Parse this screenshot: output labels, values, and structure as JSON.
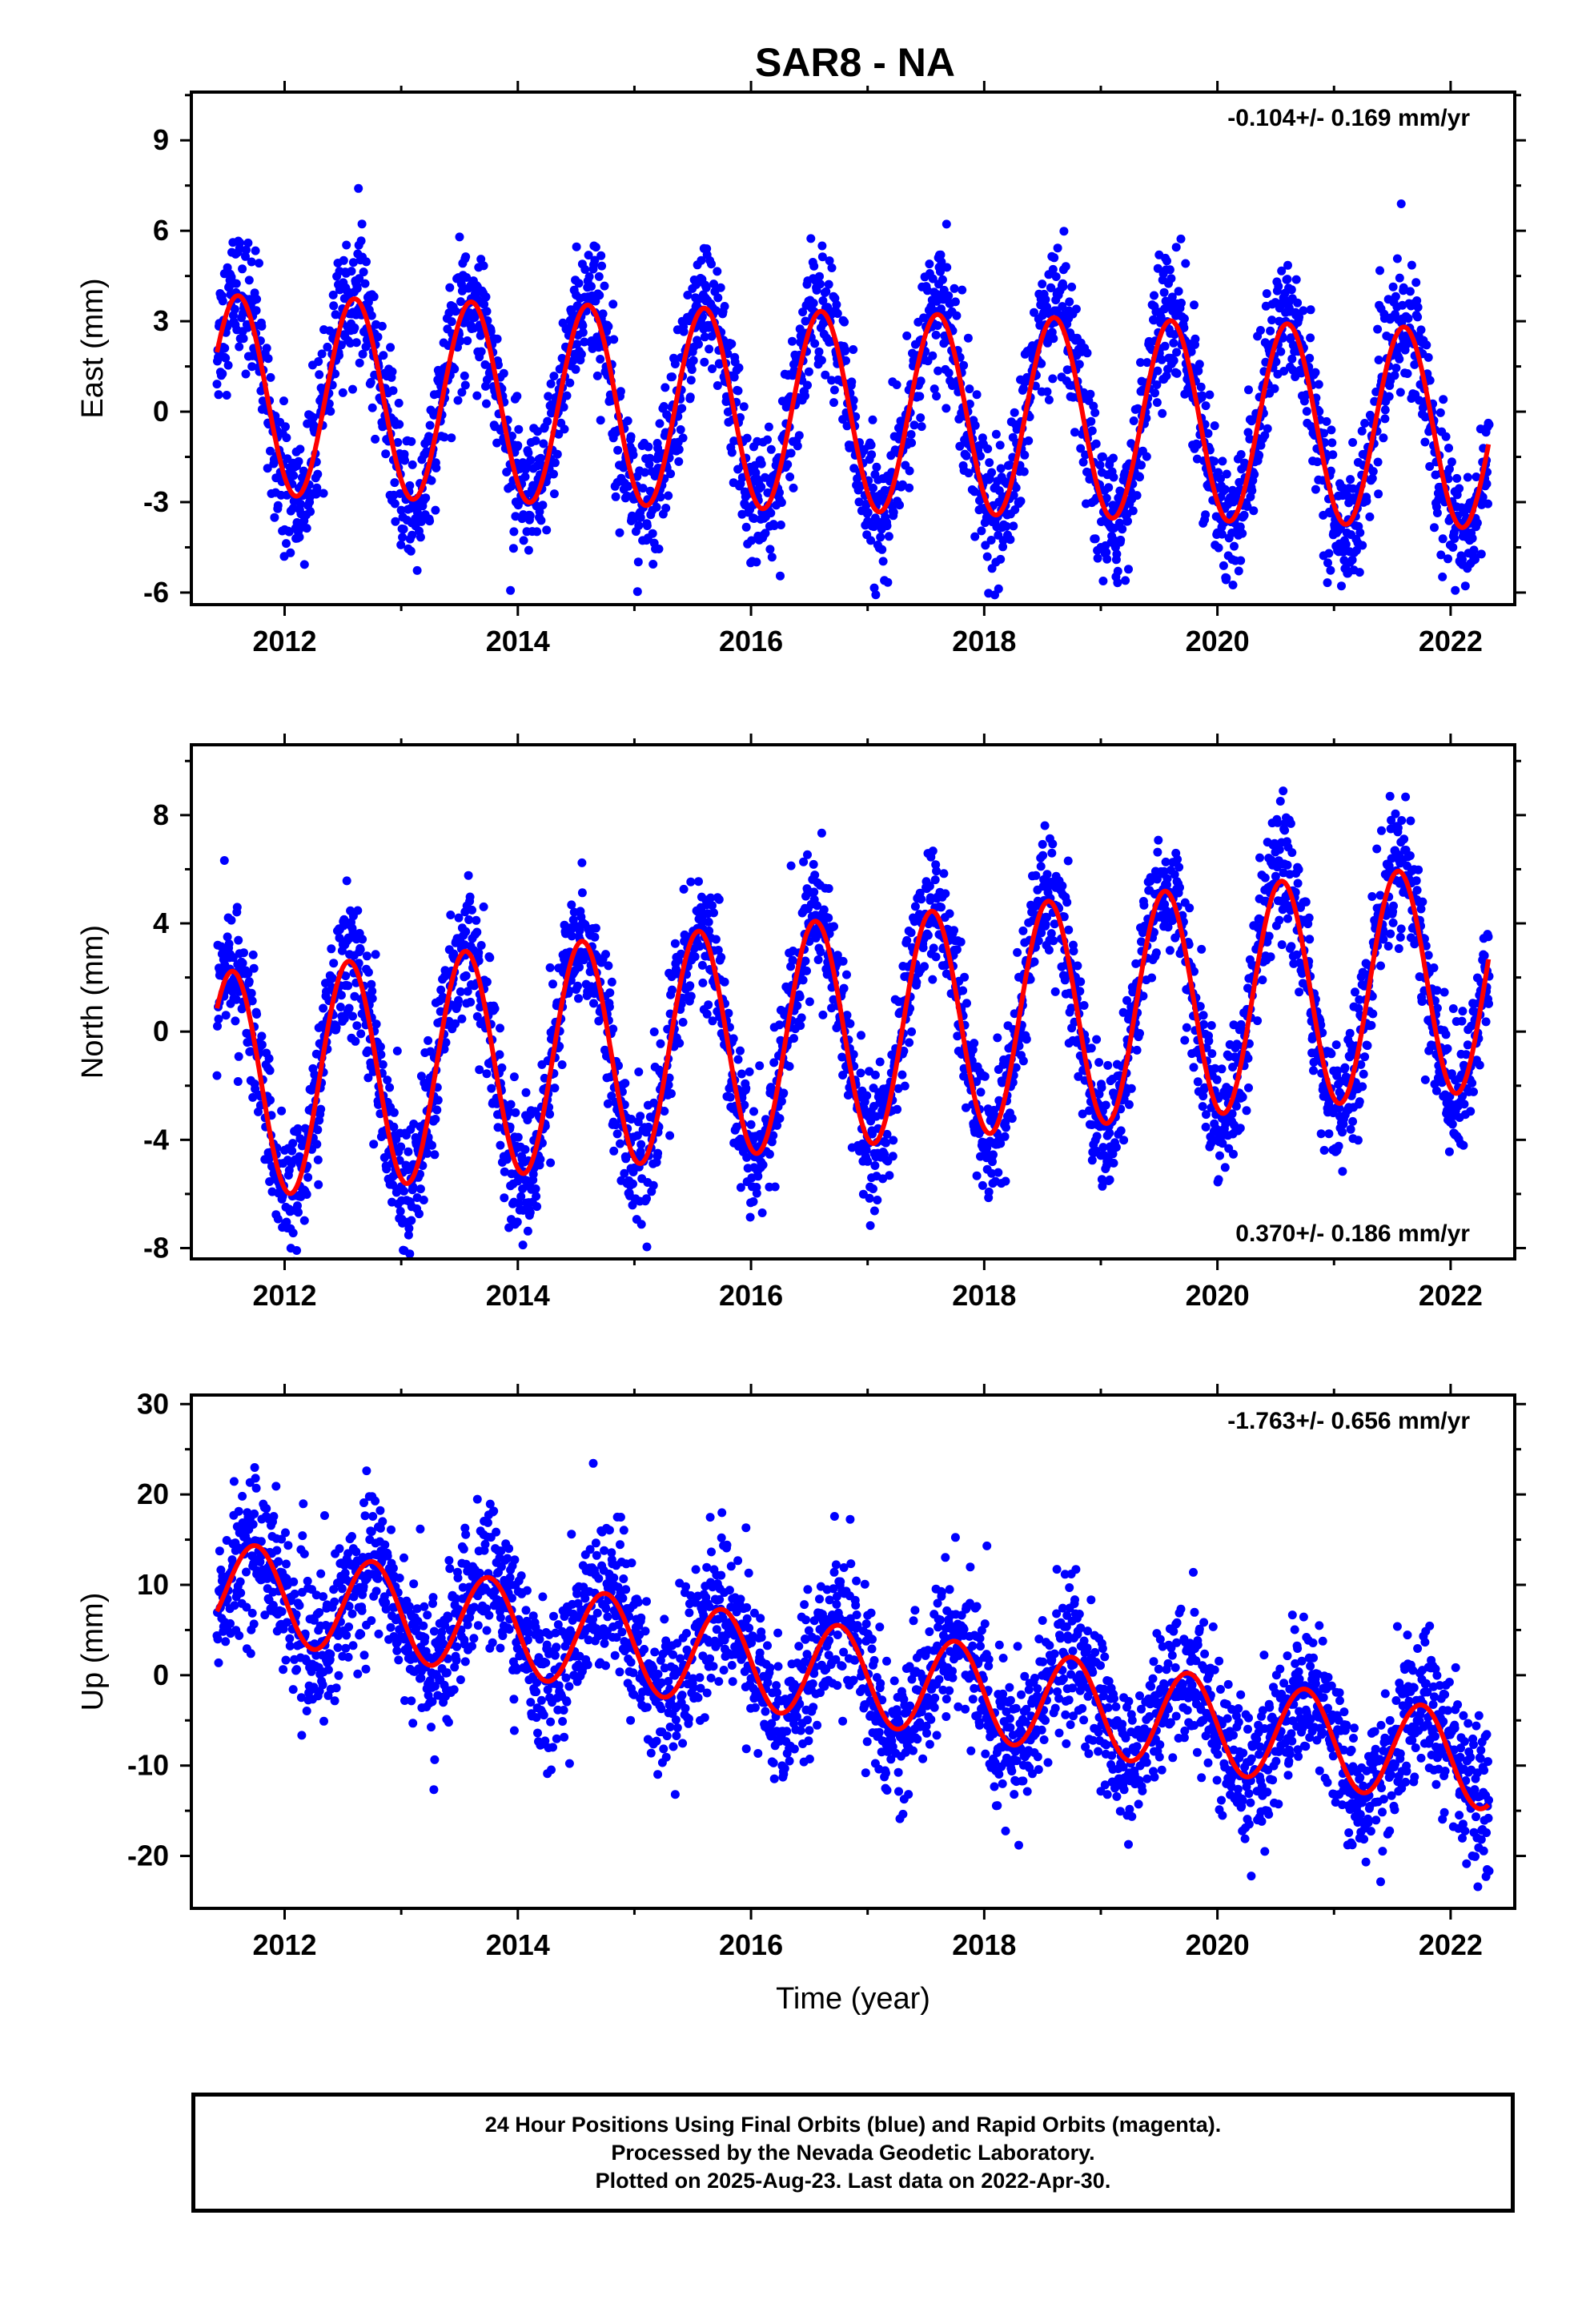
{
  "colors": {
    "points": "#0000ff",
    "model": "#ff0000",
    "axis": "#000000"
  },
  "chart_data": [
    {
      "type": "scatter",
      "title": "SAR8 - NA",
      "ylabel": "East (mm)",
      "xlabel": "",
      "rate_label": "-0.104+/- 0.169 mm/yr",
      "rate_label_position": "top-right",
      "xlim": [
        2011.2,
        2022.55
      ],
      "ylim": [
        -6.4,
        10.6
      ],
      "x_ticks": [
        2012,
        2014,
        2016,
        2018,
        2020,
        2022
      ],
      "y_ticks": [
        -6,
        -3,
        0,
        3,
        6,
        9
      ],
      "series": [
        {
          "role": "data",
          "marker": "dot",
          "color": "#0000ff",
          "x_range": [
            2011.42,
            2022.33
          ],
          "amplitude": 3.5,
          "trend": -0.104,
          "noise": 1.1,
          "peak_phase": 0.6
        },
        {
          "role": "model",
          "style": "line",
          "color": "#ff0000",
          "x_range": [
            2011.42,
            2022.33
          ],
          "amplitude": 3.3,
          "trend": -0.104,
          "peak_phase": 0.6
        }
      ]
    },
    {
      "type": "scatter",
      "title": "",
      "ylabel": "North (mm)",
      "xlabel": "",
      "rate_label": "0.370+/- 0.186 mm/yr",
      "rate_label_position": "bottom-right",
      "xlim": [
        2011.2,
        2022.55
      ],
      "ylim": [
        -8.4,
        10.6
      ],
      "x_ticks": [
        2012,
        2014,
        2016,
        2018,
        2020,
        2022
      ],
      "y_ticks": [
        -8,
        -4,
        0,
        4,
        8
      ],
      "series": [
        {
          "role": "data",
          "marker": "dot",
          "color": "#0000ff",
          "x_range": [
            2011.42,
            2022.33
          ],
          "amplitude": 4.4,
          "trend": 0.37,
          "noise": 1.2,
          "peak_phase": 0.55
        },
        {
          "role": "model",
          "style": "line",
          "color": "#ff0000",
          "x_range": [
            2011.42,
            2022.33
          ],
          "amplitude": 4.2,
          "trend": 0.37,
          "peak_phase": 0.55
        }
      ]
    },
    {
      "type": "scatter",
      "title": "",
      "ylabel": "Up (mm)",
      "xlabel": "Time (year)",
      "rate_label": "-1.763+/- 0.656 mm/yr",
      "rate_label_position": "top-right",
      "xlim": [
        2011.2,
        2022.55
      ],
      "ylim": [
        -25.8,
        31.0
      ],
      "x_ticks": [
        2012,
        2014,
        2016,
        2018,
        2020,
        2022
      ],
      "y_ticks": [
        -20,
        -10,
        0,
        10,
        20,
        30
      ],
      "series": [
        {
          "role": "data",
          "marker": "dot",
          "color": "#0000ff",
          "x_range": [
            2011.42,
            2022.33
          ],
          "amplitude": 5.5,
          "trend": -1.763,
          "noise": 4.0,
          "peak_phase": 0.75
        },
        {
          "role": "model",
          "style": "line",
          "color": "#ff0000",
          "x_range": [
            2011.42,
            2022.33
          ],
          "amplitude": 5.3,
          "trend": -1.763,
          "peak_phase": 0.75
        }
      ]
    }
  ],
  "footer": {
    "line1": "24 Hour Positions Using Final Orbits (blue) and Rapid Orbits (magenta).",
    "line2": "Processed by the Nevada Geodetic Laboratory.",
    "line3": "Plotted on 2025-Aug-23. Last data on 2022-Apr-30."
  }
}
